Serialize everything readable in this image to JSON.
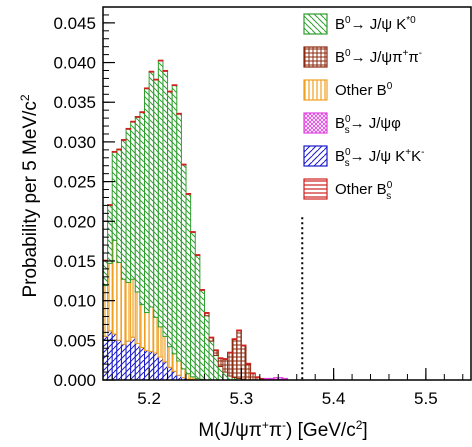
{
  "chart_data": {
    "type": "histogram",
    "xlabel": "M(J/ψπ⁺π⁻) [GeV/c²]",
    "ylabel": "Probability per 5 MeV/c²",
    "xlim": [
      5.15,
      5.55
    ],
    "ylim": [
      0,
      0.047
    ],
    "x_ticks": [
      "5.2",
      "5.3",
      "5.4",
      "5.5"
    ],
    "y_ticks": [
      "0.000",
      "0.005",
      "0.010",
      "0.015",
      "0.020",
      "0.025",
      "0.030",
      "0.035",
      "0.040",
      "0.045"
    ],
    "bin_width": 0.005,
    "bin_start": 5.15,
    "stacked": true,
    "cut_line_x": 5.366,
    "legend_position": "top-right",
    "series": [
      {
        "name": "Bs0→J/ψ K+K-",
        "color": "#1a1acc",
        "pattern": "hatch-right",
        "values": [
          0.0055,
          0.0062,
          0.0058,
          0.005,
          0.0045,
          0.0049,
          0.0054,
          0.0046,
          0.0041,
          0.0037,
          0.0036,
          0.0034,
          0.0029,
          0.0023,
          0.0016,
          0.0011,
          0.0006,
          0.0003,
          0.0001,
          0.0001
        ]
      },
      {
        "name": "Other B0",
        "color": "#f0a020",
        "pattern": "vertical",
        "values": [
          0.0064,
          0.0085,
          0.0118,
          0.0098,
          0.0082,
          0.0074,
          0.0073,
          0.0065,
          0.0054,
          0.0048,
          0.0056,
          0.0045,
          0.0038,
          0.0032,
          0.0026,
          0.0022,
          0.0018,
          0.0011,
          0.0007,
          0.0003,
          0.0002,
          0.0001
        ]
      },
      {
        "name": "B0→ J/ψ K*0",
        "color": "#2e9e2e",
        "pattern": "hatch-left",
        "values": [
          0.0031,
          0.0073,
          0.0111,
          0.0142,
          0.0175,
          0.0193,
          0.0198,
          0.022,
          0.0242,
          0.0282,
          0.0296,
          0.0299,
          0.0335,
          0.0334,
          0.0321,
          0.0338,
          0.0311,
          0.0257,
          0.0226,
          0.0182,
          0.0155,
          0.0112,
          0.0081,
          0.0049,
          0.0031,
          0.0017,
          0.001,
          0.0005,
          0.0003,
          0.0002,
          0.0001
        ]
      },
      {
        "name": "B0→ J/ψπ+π-",
        "color": "#8b2a0e",
        "pattern": "cross",
        "start_bin": 22,
        "values": [
          0.0003,
          0.0004,
          0.0006,
          0.001,
          0.0016,
          0.0029,
          0.0048,
          0.006,
          0.0042,
          0.002,
          0.0008,
          0.0003,
          0.0001
        ]
      },
      {
        "name": "Other Bs0",
        "color": "#d02020",
        "pattern": "horizontal",
        "values": [
          0.0001,
          0.0001,
          0.0001,
          0.0001,
          0.0001,
          0.0001,
          0.0001,
          0.0001,
          0.0001,
          0.0001,
          0.0001,
          0.0001,
          0.0001,
          0.0001,
          0.0001,
          0.0001,
          0.0001,
          0.0001,
          0.0001,
          0.0001,
          0.0001,
          0.0001,
          0.0001,
          0.0001,
          0.0001,
          0.0001,
          0.0001,
          0.0001,
          0.0001,
          0.0001,
          0.0001,
          0.0001,
          0.0001,
          0.0001,
          0.0001,
          0.0001,
          0.0001,
          0.0001,
          0.0001,
          0.0001
        ]
      },
      {
        "name": "Bs0→ J/ψφ",
        "color": "#e040e0",
        "pattern": "crosshatch",
        "start_bin": 35,
        "values": [
          0.0001,
          0.0001,
          0.0002,
          0.0002,
          0.0001
        ]
      }
    ]
  }
}
